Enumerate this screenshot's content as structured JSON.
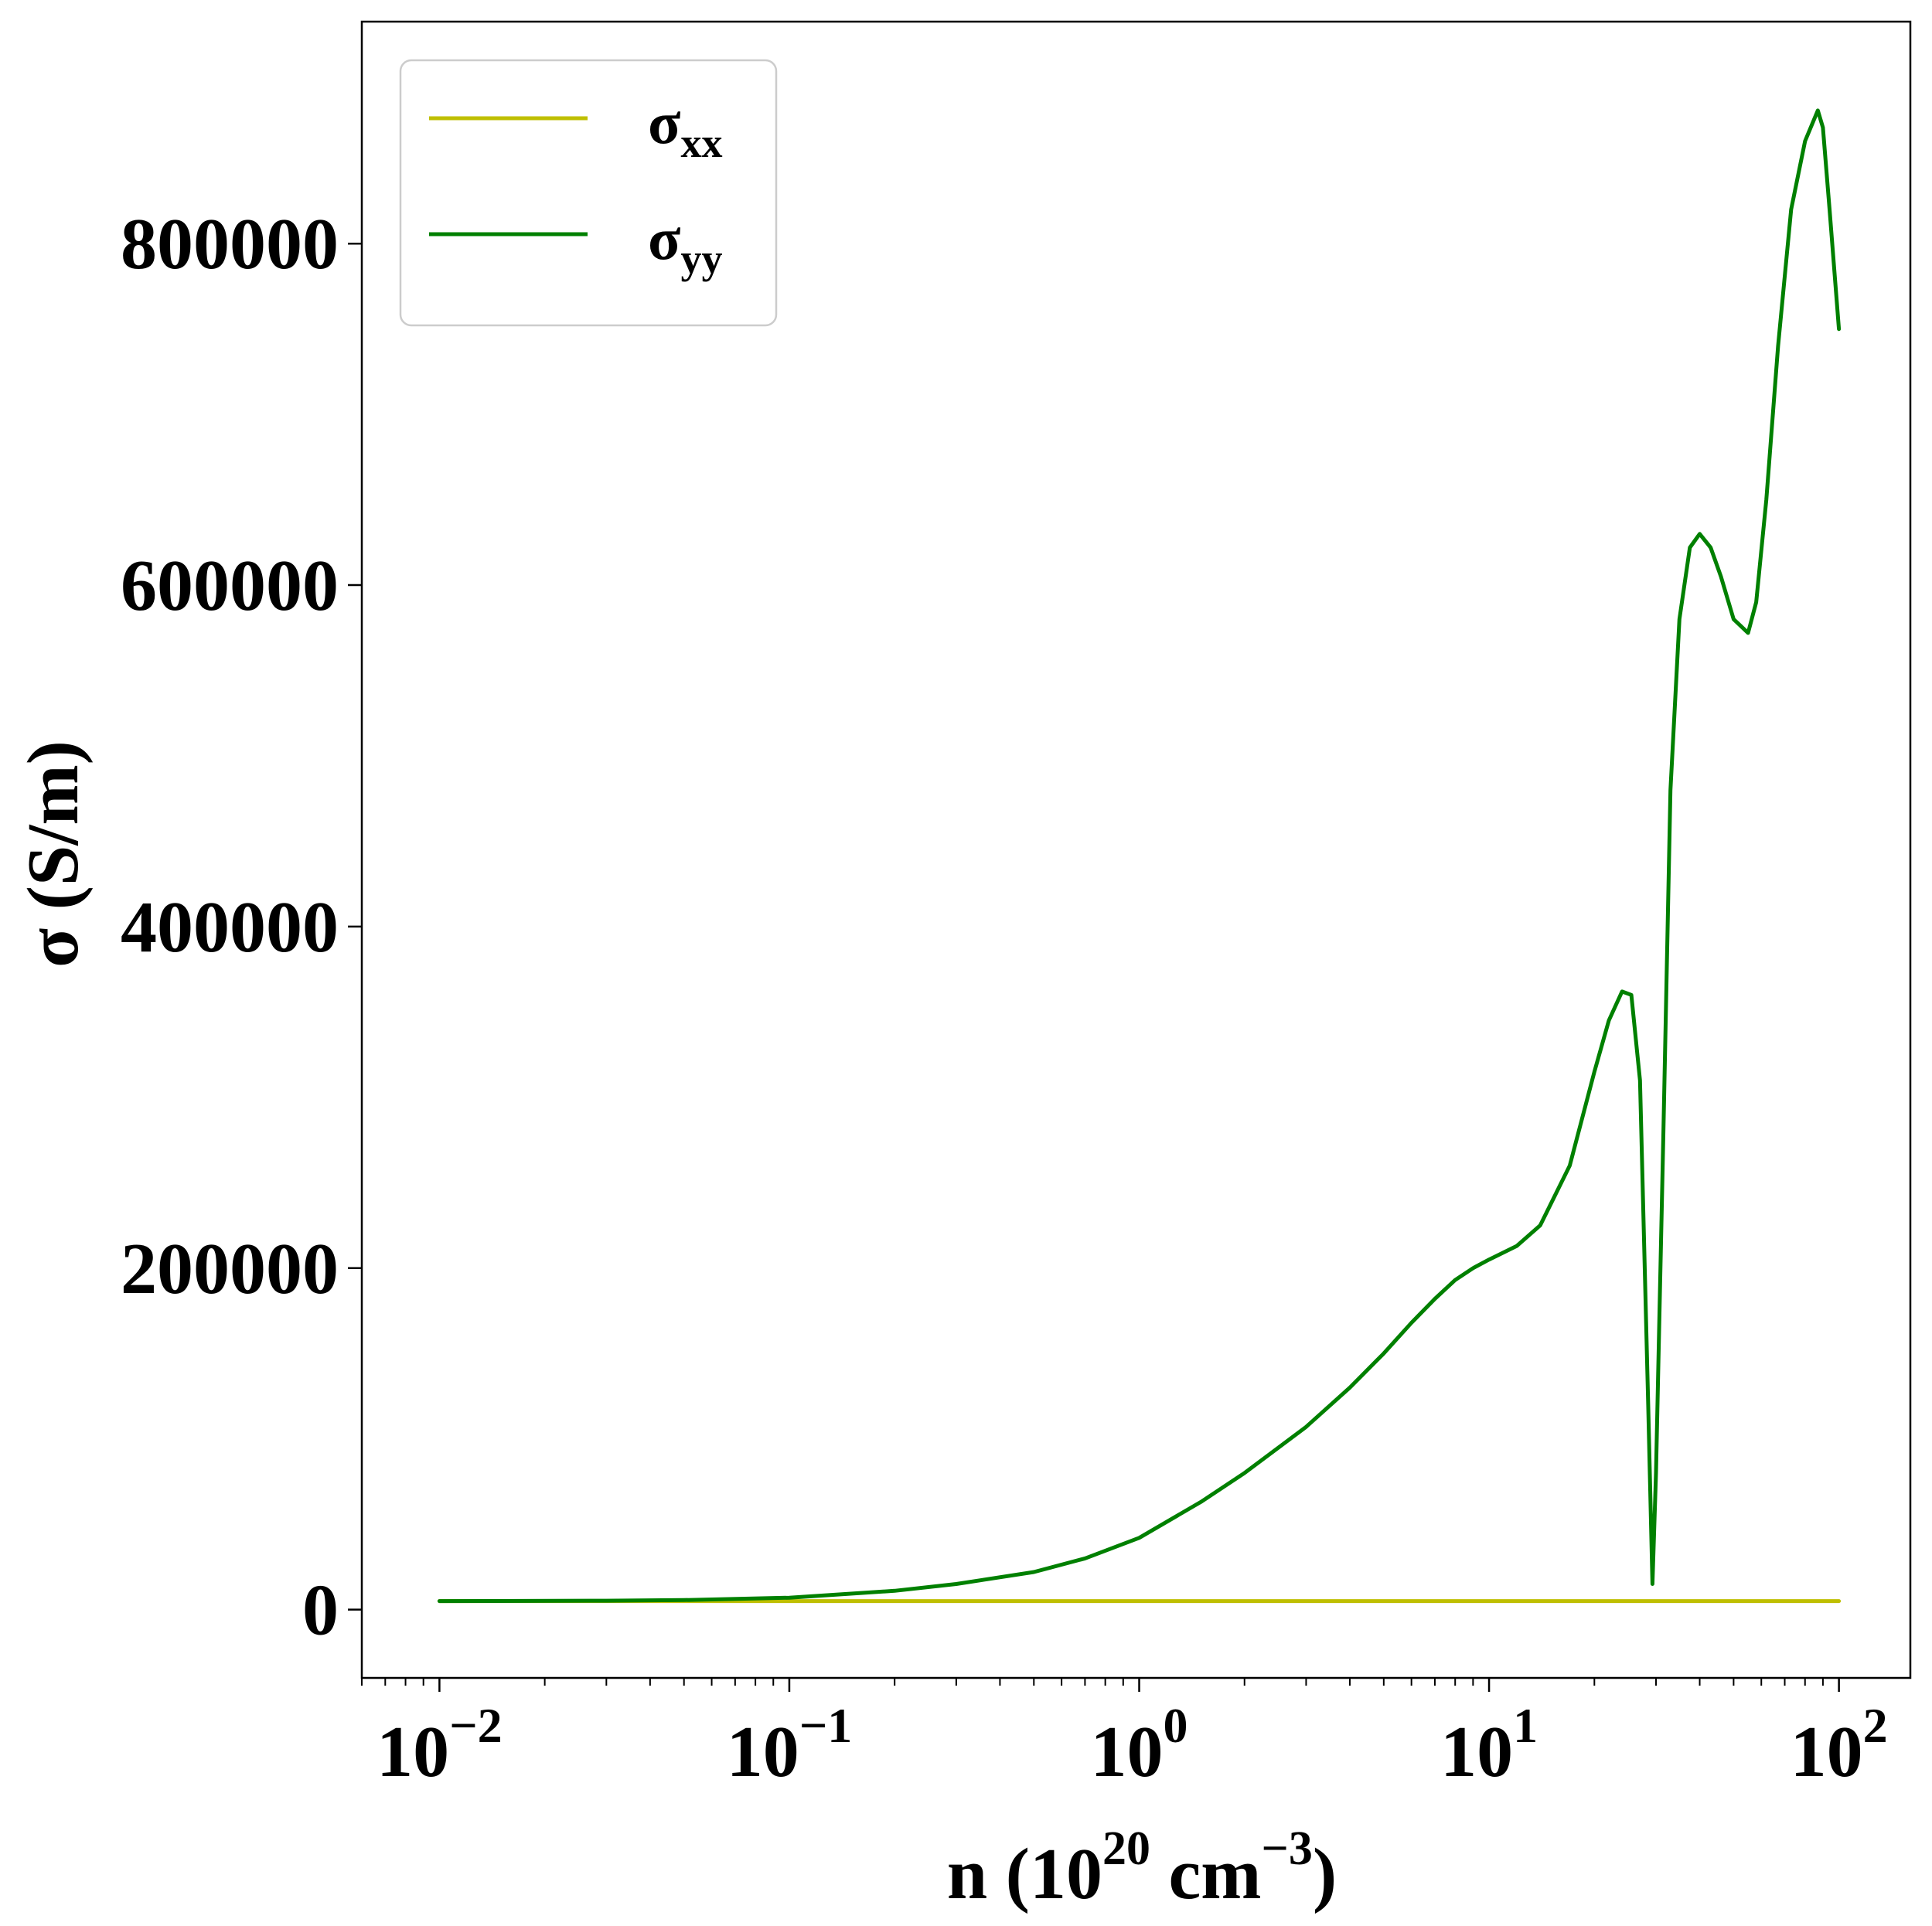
{
  "chart_data": {
    "type": "line",
    "title": "",
    "xlabel": {
      "base": "n (10",
      "sup1": "20",
      "mid": " cm",
      "sup2": "−3",
      "end": ")"
    },
    "ylabel": "σ (S/m)",
    "xscale": "log",
    "xlim": [
      0.006,
      160
    ],
    "ylim": [
      -40000,
      930000
    ],
    "grid": false,
    "legend_position": "top-left",
    "x_ticks": [
      {
        "value": 0.01,
        "base": "10",
        "exp": "−2"
      },
      {
        "value": 0.1,
        "base": "10",
        "exp": "−1"
      },
      {
        "value": 1,
        "base": "10",
        "exp": "0"
      },
      {
        "value": 10,
        "base": "10",
        "exp": "1"
      },
      {
        "value": 100,
        "base": "10",
        "exp": "2"
      }
    ],
    "y_ticks": [
      {
        "value": 0,
        "label": "0"
      },
      {
        "value": 200000,
        "label": "200000"
      },
      {
        "value": 400000,
        "label": "400000"
      },
      {
        "value": 600000,
        "label": "600000"
      },
      {
        "value": 800000,
        "label": "800000"
      }
    ],
    "series": [
      {
        "name": {
          "base": "σ",
          "sub": "xx"
        },
        "color": "#bfbf00",
        "x": [
          0.01,
          100
        ],
        "y": [
          5000,
          5000
        ],
        "hidden_under_next": true
      },
      {
        "name": {
          "base": "σ",
          "sub": "yy"
        },
        "color": "#008000",
        "x": [
          0.01,
          0.03,
          0.05,
          0.1,
          0.2,
          0.3,
          0.5,
          0.7,
          1.0,
          1.5,
          2.0,
          3.0,
          4.0,
          5.0,
          6.0,
          7.0,
          8.0,
          9.0,
          10.0,
          12.0,
          14.0,
          17.0,
          20.0,
          22.0,
          24.0,
          25.5,
          27.0,
          28.5,
          29.3,
          30.0,
          31.5,
          33.0,
          35.0,
          37.5,
          40.0,
          43.0,
          46.0,
          50.0,
          55.0,
          58.0,
          62.0,
          67.0,
          73.0,
          80.0,
          87.0,
          90.0,
          94.0,
          100.0
        ],
        "y": [
          5000,
          5200,
          5600,
          7000,
          11000,
          15000,
          22000,
          30000,
          42000,
          63000,
          80000,
          107000,
          130000,
          150000,
          168000,
          182000,
          193000,
          200000,
          205000,
          213000,
          225000,
          260000,
          315000,
          345000,
          362000,
          360000,
          310000,
          120000,
          15000,
          80000,
          280000,
          480000,
          580000,
          622000,
          630000,
          622000,
          605000,
          580000,
          572000,
          590000,
          650000,
          740000,
          820000,
          860000,
          878000,
          868000,
          820000,
          750000
        ]
      }
    ]
  }
}
